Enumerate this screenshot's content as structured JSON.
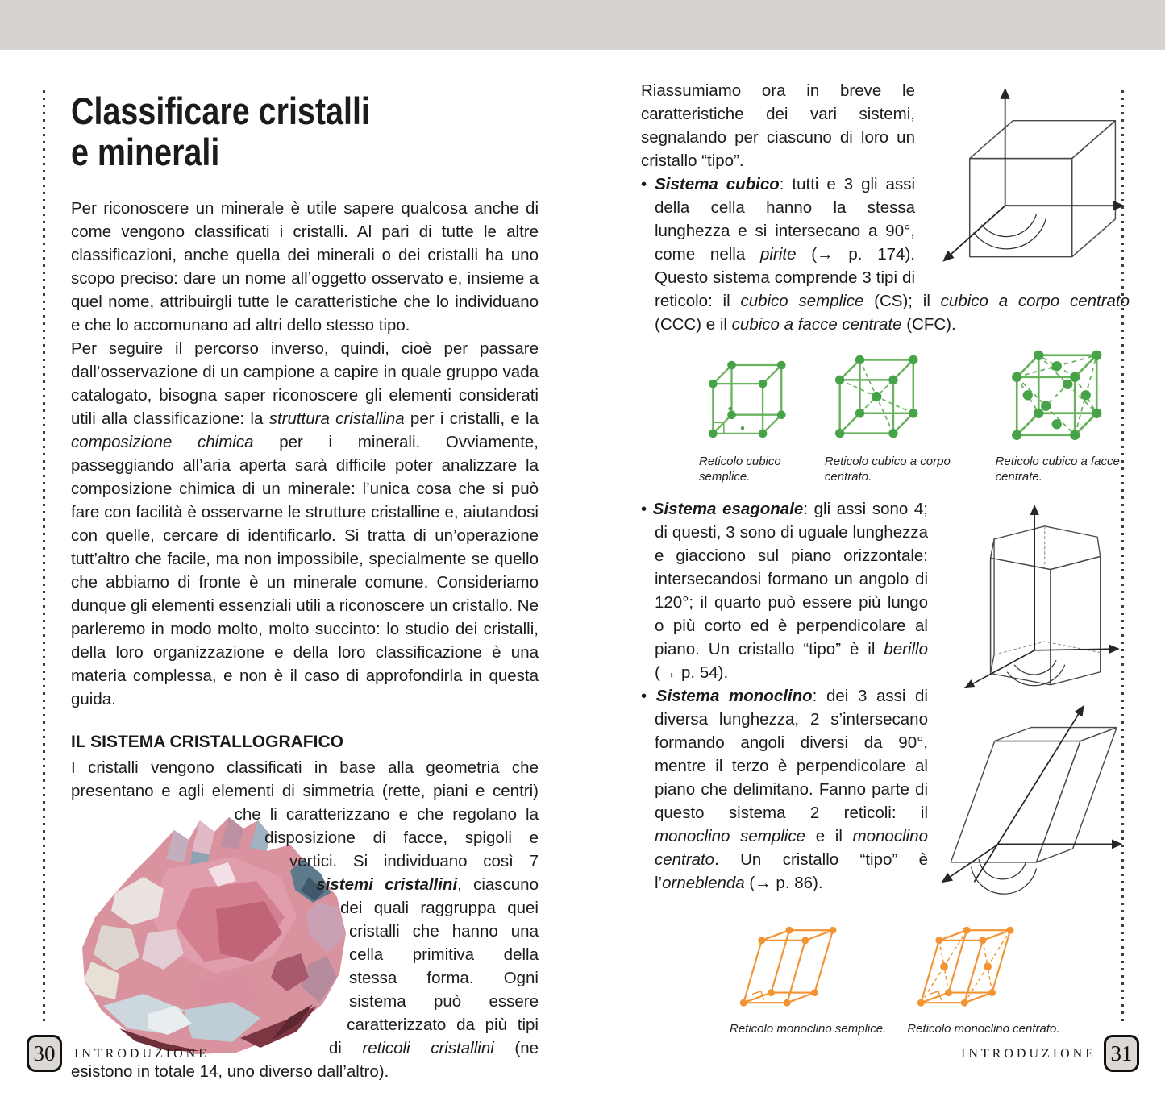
{
  "colors": {
    "band": "#d6d2cd",
    "ink": "#1b1b1b",
    "green_line": "#6ab35e",
    "green_dot": "#47a347",
    "cube_top": "#e9f2dc",
    "cube_front": "#cfe7b2",
    "cube_right": "#afd78d",
    "purple_top": "#ecdff2",
    "purple_front": "#e3d0ec",
    "purple_right": "#d0b5e0",
    "purple_side": "#c7a8da",
    "orange_top": "#fdeacb",
    "orange_front": "#fad4a0",
    "orange_right": "#f4b368",
    "orange_line": "#f29434",
    "axis": "#262626"
  },
  "left_page": {
    "title_line1": "Classificare cristalli",
    "title_line2": "e minerali",
    "para1": "Per riconoscere un minerale è utile sapere qualcosa anche di come vengono classificati i cristalli. Al pari di tutte le altre classificazioni, anche quella dei minerali o dei cristalli ha uno scopo preciso: dare un nome all’oggetto osservato e, insieme a quel nome, attribuirgli tutte le caratteristiche che lo individuano e che lo accomunano ad altri dello stesso tipo.",
    "para2_rich": [
      {
        "t": "Per seguire il percorso inverso, quindi, cioè per passare dall’osservazione di un campione a capire in quale gruppo vada catalogato, bisogna saper riconoscere gli elementi considerati utili alla classificazione: la ",
        "s": ""
      },
      {
        "t": "struttura cristallina",
        "s": "i"
      },
      {
        "t": " per i cristalli, e la ",
        "s": ""
      },
      {
        "t": "composizione chimica",
        "s": "i"
      },
      {
        "t": " per i minerali. Ovviamente, passeggiando all’aria aperta sarà difficile poter analizzare la composizione chimica di un minerale: l’unica cosa che si può fare con facilità è osservarne le strutture cristalline e, aiutandosi con quelle, cercare di identificarlo. Si tratta di un’operazione tutt’altro che facile, ma non impossibile, specialmente se quello che abbiamo di fronte è un minerale comune. Consideriamo dunque gli elementi essenziali utili a riconoscere un cristallo. Ne parleremo in modo molto, molto succinto: lo studio dei cristalli, della loro organizzazione e della loro classificazione è una materia complessa, e non è il caso di approfondirla in questa guida.",
        "s": ""
      }
    ],
    "section_heading": "IL SISTEMA CRISTALLOGRAFICO",
    "para3_rich": [
      {
        "t": "I cristalli vengono classificati in base alla geometria che presentano e agli elementi di simmetria (rette, piani e centri) che li caratterizzano e che regolano la disposizione di facce, spigoli e vertici. Si individuano così 7 ",
        "s": ""
      },
      {
        "t": "sistemi cristallini",
        "s": "bi"
      },
      {
        "t": ", ciascuno dei quali raggruppa quei cristalli che hanno una cella primitiva della stessa forma. Ogni sistema può essere caratterizzato da più tipi di ",
        "s": ""
      },
      {
        "t": "reticoli cristallini",
        "s": "i"
      },
      {
        "t": " (ne esistono in totale 14, uno diverso dall’altro).",
        "s": ""
      }
    ],
    "crystal_photo_alt": "Cristallo di quarzo rosa",
    "footer": {
      "page_number": "30",
      "label": "INTRODUZIONE"
    }
  },
  "right_page": {
    "intro": "Riassumiamo ora in breve le caratteristiche dei vari sistemi, segnalando per ciascuno di loro un cristallo “tipo”.",
    "bullet_cubico_rich": [
      {
        "t": "• ",
        "s": ""
      },
      {
        "t": "Sistema cubico",
        "s": "bi"
      },
      {
        "t": ": tutti e 3 gli assi della cella hanno la stessa lunghezza e si intersecano a 90°, come nella ",
        "s": ""
      },
      {
        "t": "pirite",
        "s": "i"
      },
      {
        "t": " (→ p. 174). Questo sistema comprende 3 tipi di reticolo: il ",
        "s": ""
      },
      {
        "t": "cubico semplice",
        "s": "i"
      },
      {
        "t": " (CS); il ",
        "s": ""
      },
      {
        "t": "cubico a corpo centrato",
        "s": "i"
      },
      {
        "t": " (CCC) e il ",
        "s": ""
      },
      {
        "t": "cubico a facce centrate",
        "s": "i"
      },
      {
        "t": " (CFC).",
        "s": ""
      }
    ],
    "cubic_captions": [
      "Reticolo cubico semplice.",
      "Reticolo cubico a corpo centrato.",
      "Reticolo cubico a facce centrate."
    ],
    "bullet_esagonale_rich": [
      {
        "t": "• ",
        "s": ""
      },
      {
        "t": "Sistema esagonale",
        "s": "bi"
      },
      {
        "t": ": gli assi sono 4; di questi, 3 sono di uguale lunghezza e giacciono sul piano orizzontale: intersecandosi formano un angolo di 120°; il quarto può essere più lungo o più corto ed è perpendicolare al piano. Un cristallo “tipo” è il ",
        "s": ""
      },
      {
        "t": "berillo",
        "s": "i"
      },
      {
        "t": " (→ p. 54).",
        "s": ""
      }
    ],
    "bullet_monoclino_rich": [
      {
        "t": "• ",
        "s": ""
      },
      {
        "t": "Sistema monoclino",
        "s": "bi"
      },
      {
        "t": ": dei 3 assi di diversa lunghezza, 2 s’intersecano formando angoli diversi da 90°, mentre il terzo è perpendicolare al piano che delimitano. Fanno parte di questo sistema 2 reticoli: il ",
        "s": ""
      },
      {
        "t": "monoclino semplice",
        "s": "i"
      },
      {
        "t": " e il ",
        "s": ""
      },
      {
        "t": "monoclino centrato",
        "s": "i"
      },
      {
        "t": ". Un cristallo “tipo” è l’",
        "s": ""
      },
      {
        "t": "orneblenda",
        "s": "i"
      },
      {
        "t": " (→ p. 86).",
        "s": ""
      }
    ],
    "mono_captions": [
      "Reticolo monoclino semplice.",
      "Reticolo monoclino centrato."
    ],
    "footer": {
      "label": "INTRODUZIONE",
      "page_number": "31"
    }
  }
}
